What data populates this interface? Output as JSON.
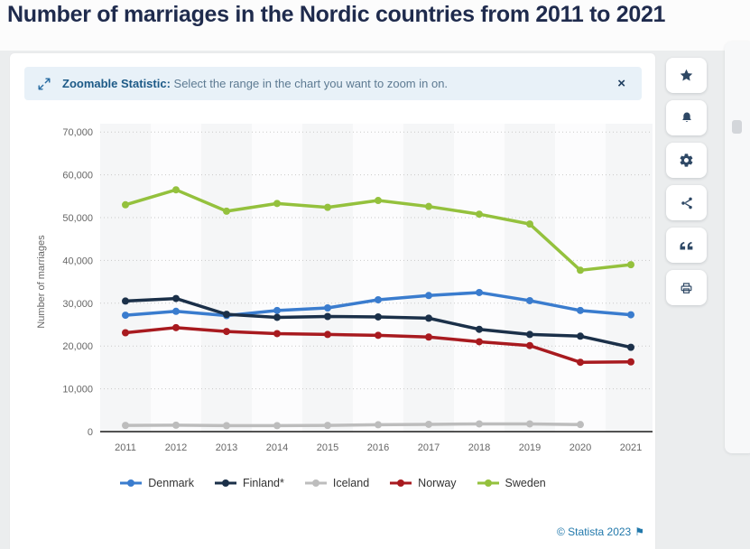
{
  "page": {
    "title": "Number of marriages in the Nordic countries from 2011 to 2021",
    "copyright": "© Statista 2023",
    "flag_icon": "⚑",
    "accent_color": "#2178ab"
  },
  "banner": {
    "icon": "zoom-range-icon",
    "bold_label": "Zoomable Statistic:",
    "message": " Select the range in the chart you want to zoom in on.",
    "close_label": "×"
  },
  "sidebar": {
    "buttons": [
      {
        "name": "favorite",
        "icon": "star-icon"
      },
      {
        "name": "alerts",
        "icon": "bell-icon"
      },
      {
        "name": "settings",
        "icon": "gear-icon"
      },
      {
        "name": "share",
        "icon": "share-icon"
      },
      {
        "name": "cite",
        "icon": "quote-icon"
      },
      {
        "name": "print",
        "icon": "printer-icon"
      }
    ]
  },
  "chart_data": {
    "type": "line",
    "title": "Number of marriages in the Nordic countries from 2011 to 2021",
    "x": [
      "2011",
      "2012",
      "2013",
      "2014",
      "2015",
      "2016",
      "2017",
      "2018",
      "2019",
      "2020",
      "2021"
    ],
    "ylabel": "Number of marriages",
    "ylim": [
      0,
      70000
    ],
    "ytick_step": 10000,
    "ytick_labels": [
      "0",
      "10,000",
      "20,000",
      "30,000",
      "40,000",
      "50,000",
      "60,000",
      "70,000"
    ],
    "grid": "dotted-horizontal",
    "legend_position": "bottom",
    "series": [
      {
        "name": "Denmark",
        "color": "#3a7cce",
        "values": [
          27200,
          28100,
          27100,
          28300,
          28900,
          30800,
          31800,
          32500,
          30600,
          28300,
          27300
        ]
      },
      {
        "name": "Finland*",
        "color": "#1b3049",
        "values": [
          30500,
          31100,
          27400,
          26700,
          26900,
          26800,
          26500,
          23900,
          22700,
          22300,
          19700
        ]
      },
      {
        "name": "Iceland",
        "color": "#bdbdbd",
        "values": [
          1450,
          1500,
          1400,
          1400,
          1450,
          1600,
          1700,
          1800,
          1800,
          1650,
          null
        ]
      },
      {
        "name": "Norway",
        "color": "#a81a1f",
        "values": [
          23100,
          24300,
          23400,
          22900,
          22700,
          22500,
          22100,
          21000,
          20100,
          16200,
          16300
        ]
      },
      {
        "name": "Sweden",
        "color": "#94c13d",
        "values": [
          53000,
          56500,
          51500,
          53300,
          52400,
          54000,
          52600,
          50800,
          48500,
          37700,
          39000
        ]
      }
    ]
  }
}
